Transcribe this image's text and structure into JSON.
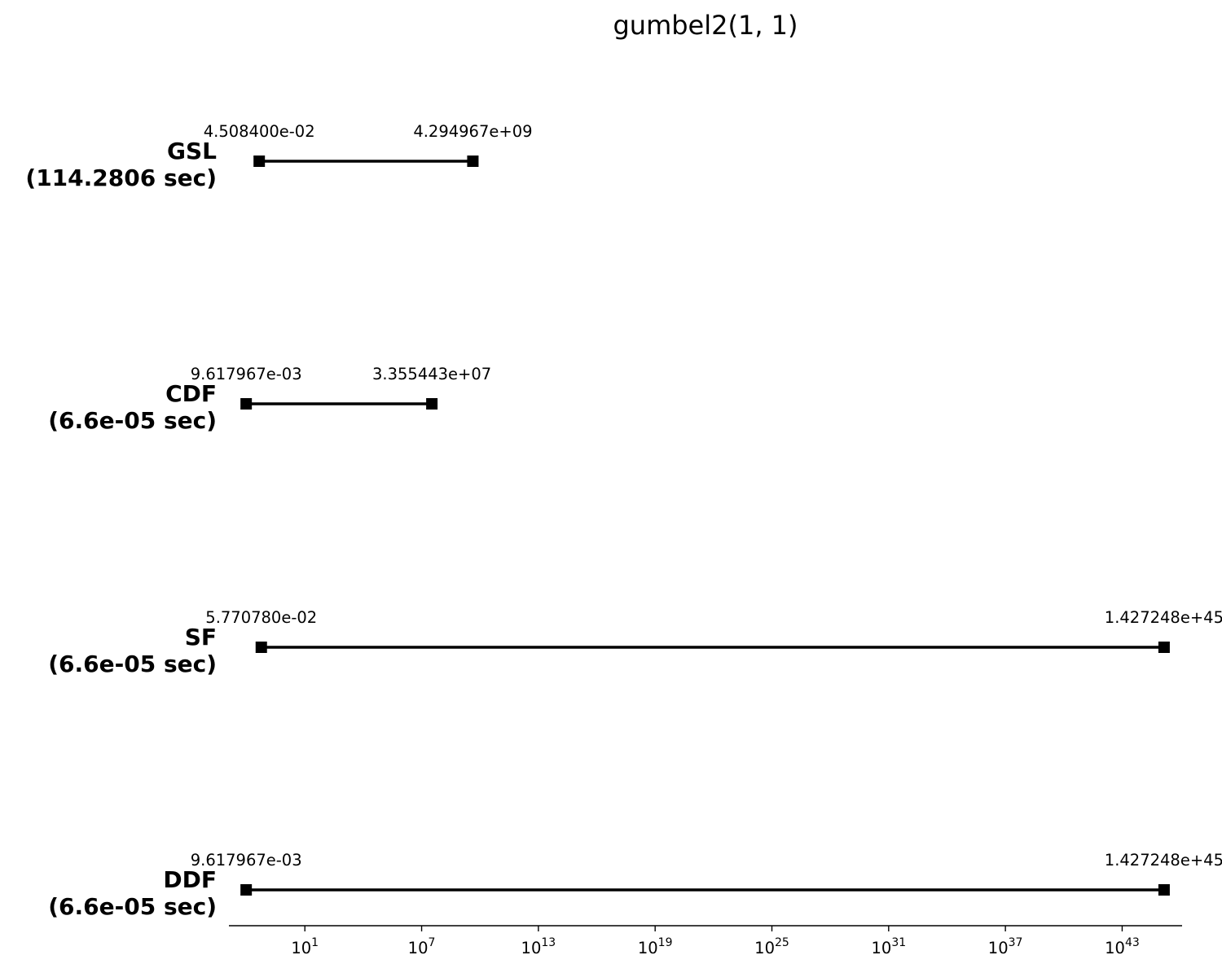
{
  "chart_data": {
    "type": "range",
    "title": "gumbel2(1, 1)",
    "xlabel": "",
    "ylabel": "",
    "x_scale": "log",
    "xlim": [
      0.00125,
      1.2e+46
    ],
    "grid": false,
    "legend": "none",
    "x_ticks": [
      {
        "value": 10,
        "base": "10",
        "exponent": "1"
      },
      {
        "value": 10000000.0,
        "base": "10",
        "exponent": "7"
      },
      {
        "value": 10000000000000.0,
        "base": "10",
        "exponent": "13"
      },
      {
        "value": 1e+19,
        "base": "10",
        "exponent": "19"
      },
      {
        "value": 1e+25,
        "base": "10",
        "exponent": "25"
      },
      {
        "value": 1e+31,
        "base": "10",
        "exponent": "31"
      },
      {
        "value": 1e+37,
        "base": "10",
        "exponent": "37"
      },
      {
        "value": 1e+43,
        "base": "10",
        "exponent": "43"
      }
    ],
    "series": [
      {
        "label": "GSL",
        "timing": "(114.2806 sec)",
        "low": 0.045084,
        "high": 4294967000,
        "low_label": "4.508400e-02",
        "high_label": "4.294967e+09"
      },
      {
        "label": "CDF",
        "timing": "(6.6e-05 sec)",
        "low": 0.009617967,
        "high": 33554430,
        "low_label": "9.617967e-03",
        "high_label": "3.355443e+07"
      },
      {
        "label": "SF",
        "timing": "(6.6e-05 sec)",
        "low": 0.0577078,
        "high": 1.427248e+45,
        "low_label": "5.770780e-02",
        "high_label": "1.427248e+45"
      },
      {
        "label": "DDF",
        "timing": "(6.6e-05 sec)",
        "low": 0.009617967,
        "high": 1.427248e+45,
        "low_label": "9.617967e-03",
        "high_label": "1.427248e+45"
      }
    ]
  },
  "colors": {
    "line": "#000000",
    "marker": "#000000",
    "axis": "#000000",
    "background": "#ffffff"
  }
}
